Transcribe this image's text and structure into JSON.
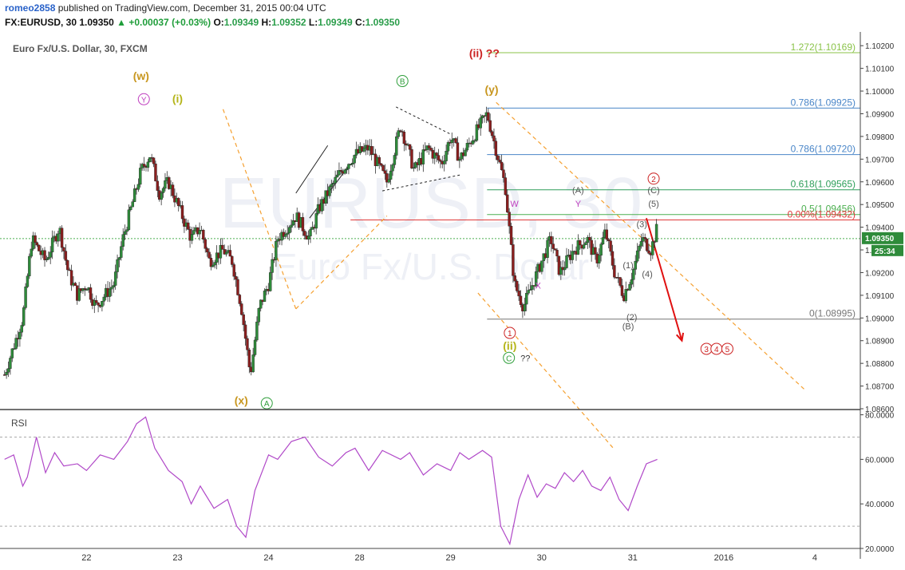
{
  "header": {
    "author": "romeo2858",
    "published_text": "published on TradingView.com, December 31, 2015 00:04 UTC",
    "symbol": "FX:EURUSD, 30",
    "last": "1.09350",
    "change": "+0.00037 (+0.03%)",
    "open_label": "O:",
    "open": "1.09349",
    "high_label": "H:",
    "high": "1.09352",
    "low_label": "L:",
    "low": "1.09349",
    "close_label": "C:",
    "close": "1.09350"
  },
  "chart_data": {
    "type": "candlestick",
    "title": "Euro Fx/U.S. Dollar, 30, FXCM",
    "watermark": [
      "EURUSD, 30",
      "Euro Fx/U.S. Dollar"
    ],
    "ylim": [
      1.086,
      1.1025
    ],
    "y_ticks": [
      "1.08600",
      "1.08700",
      "1.08800",
      "1.08900",
      "1.09000",
      "1.09100",
      "1.09200",
      "1.09300",
      "1.09400",
      "1.09500",
      "1.09600",
      "1.09700",
      "1.09800",
      "1.09900",
      "1.10000",
      "1.10100",
      "1.10200"
    ],
    "x_ticks": [
      "22",
      "23",
      "24",
      "28",
      "29",
      "30",
      "31",
      "2016",
      "4"
    ],
    "x_tick_days": [
      1,
      2,
      3,
      4,
      5,
      6,
      7,
      8,
      9
    ],
    "x_range_days": [
      0.12,
      9.5
    ],
    "last_price": {
      "value": 1.0935,
      "label": "1.09350",
      "timer": "25:34"
    },
    "price_path": [
      [
        0.1,
        1.0875
      ],
      [
        0.3,
        1.09
      ],
      [
        0.4,
        1.0935
      ],
      [
        0.55,
        1.0925
      ],
      [
        0.7,
        1.094
      ],
      [
        0.8,
        1.092
      ],
      [
        0.9,
        1.091
      ],
      [
        1.0,
        1.0915
      ],
      [
        1.1,
        1.0905
      ],
      [
        1.3,
        1.0915
      ],
      [
        1.4,
        1.0935
      ],
      [
        1.5,
        1.095
      ],
      [
        1.6,
        1.0965
      ],
      [
        1.7,
        1.0972
      ],
      [
        1.8,
        1.0955
      ],
      [
        1.9,
        1.096
      ],
      [
        2.05,
        1.0945
      ],
      [
        2.15,
        1.0935
      ],
      [
        2.25,
        1.094
      ],
      [
        2.35,
        1.0925
      ],
      [
        2.5,
        1.093
      ],
      [
        2.6,
        1.0925
      ],
      [
        2.7,
        1.0905
      ],
      [
        2.8,
        1.0875
      ],
      [
        2.9,
        1.0905
      ],
      [
        3.0,
        1.0915
      ],
      [
        3.1,
        1.0935
      ],
      [
        3.3,
        1.0945
      ],
      [
        3.45,
        1.0935
      ],
      [
        3.55,
        1.0948
      ],
      [
        3.65,
        1.0955
      ],
      [
        3.8,
        1.0965
      ],
      [
        3.95,
        1.0972
      ],
      [
        4.1,
        1.0975
      ],
      [
        4.3,
        1.096
      ],
      [
        4.45,
        1.0985
      ],
      [
        4.6,
        1.0965
      ],
      [
        4.75,
        1.0975
      ],
      [
        4.9,
        1.0968
      ],
      [
        5.0,
        1.098
      ],
      [
        5.1,
        1.097
      ],
      [
        5.25,
        1.098
      ],
      [
        5.4,
        1.099
      ],
      [
        5.6,
        1.0958
      ],
      [
        5.7,
        1.0915
      ],
      [
        5.8,
        1.0905
      ],
      [
        5.95,
        1.092
      ],
      [
        6.1,
        1.0935
      ],
      [
        6.2,
        1.092
      ],
      [
        6.35,
        1.093
      ],
      [
        6.5,
        1.0935
      ],
      [
        6.6,
        1.0925
      ],
      [
        6.7,
        1.0938
      ],
      [
        6.8,
        1.092
      ],
      [
        6.9,
        1.091
      ],
      [
        7.0,
        1.092
      ],
      [
        7.1,
        1.0935
      ],
      [
        7.2,
        1.093
      ],
      [
        7.27,
        1.094
      ]
    ],
    "fibonacci": {
      "color": "#e03a3a",
      "levels": [
        {
          "label": "1.272(1.10169)",
          "value": 1.10169,
          "color": "#8bc34a"
        },
        {
          "label": "0.786(1.09925)",
          "value": 1.09925,
          "color": "#4a86c8"
        },
        {
          "label": "0.786(1.09720)",
          "value": 1.0972,
          "color": "#4a86c8"
        },
        {
          "label": "0.618(1.09565)",
          "value": 1.09565,
          "color": "#2e9e5a"
        },
        {
          "label": "0.5(1.09456)",
          "value": 1.09456,
          "color": "#4caf50"
        },
        {
          "label": "0.00%(1.09432)",
          "value": 1.09432,
          "color": "#e03a3a"
        },
        {
          "label": "0(1.08995)",
          "value": 1.08995,
          "color": "#777777"
        }
      ]
    },
    "wave_labels": [
      {
        "text": "(w)",
        "x": 1.6,
        "y": 1.1005,
        "color": "#c8961e",
        "shape": "none"
      },
      {
        "text": "Y",
        "x": 1.63,
        "y": 1.0995,
        "color": "#c040c0",
        "shape": "circle"
      },
      {
        "text": "(i)",
        "x": 2.0,
        "y": 1.0995,
        "color": "#b5b51a",
        "shape": "none"
      },
      {
        "text": "B",
        "x": 4.47,
        "y": 1.1003,
        "color": "#2e9e3a",
        "shape": "circle"
      },
      {
        "text": "(ii) ??",
        "x": 5.37,
        "y": 1.1015,
        "color": "#cc2222",
        "shape": "none"
      },
      {
        "text": "(y)",
        "x": 5.45,
        "y": 1.0999,
        "color": "#c8961e",
        "shape": "none"
      },
      {
        "text": "2",
        "x": 7.23,
        "y": 1.096,
        "color": "#cc2222",
        "shape": "circle"
      },
      {
        "text": "(A)",
        "x": 6.4,
        "y": 1.0955,
        "color": "#555555",
        "shape": "none"
      },
      {
        "text": "Y",
        "x": 6.4,
        "y": 1.0949,
        "color": "#c040c0",
        "shape": "none"
      },
      {
        "text": "(C)",
        "x": 7.23,
        "y": 1.0955,
        "color": "#555555",
        "shape": "none"
      },
      {
        "text": "(5)",
        "x": 7.23,
        "y": 1.0949,
        "color": "#555555",
        "shape": "none"
      },
      {
        "text": "W",
        "x": 5.7,
        "y": 1.0949,
        "color": "#c040c0",
        "shape": "none"
      },
      {
        "text": "(3)",
        "x": 7.1,
        "y": 1.094,
        "color": "#555555",
        "shape": "none"
      },
      {
        "text": "X",
        "x": 5.96,
        "y": 1.0913,
        "color": "#c040c0",
        "shape": "none"
      },
      {
        "text": "(1)",
        "x": 6.95,
        "y": 1.0922,
        "color": "#555555",
        "shape": "none"
      },
      {
        "text": "(4)",
        "x": 7.16,
        "y": 1.0918,
        "color": "#555555",
        "shape": "none"
      },
      {
        "text": "(2)",
        "x": 6.99,
        "y": 1.0899,
        "color": "#555555",
        "shape": "none"
      },
      {
        "text": "(B)",
        "x": 6.95,
        "y": 1.0895,
        "color": "#555555",
        "shape": "none"
      },
      {
        "text": "1",
        "x": 5.65,
        "y": 1.0892,
        "color": "#cc2222",
        "shape": "circle"
      },
      {
        "text": "(ii)",
        "x": 5.65,
        "y": 1.0886,
        "color": "#b5b51a",
        "shape": "none"
      },
      {
        "text": "C",
        "x": 5.64,
        "y": 1.0881,
        "color": "#2e9e3a",
        "shape": "circle"
      },
      {
        "text": "??",
        "x": 5.82,
        "y": 1.0881,
        "color": "#333333",
        "shape": "none"
      },
      {
        "text": "(x)",
        "x": 2.7,
        "y": 1.0862,
        "color": "#c8961e",
        "shape": "none"
      },
      {
        "text": "A",
        "x": 2.98,
        "y": 1.0861,
        "color": "#2e9e3a",
        "shape": "circle"
      },
      {
        "text": "3",
        "x": 7.81,
        "y": 1.0885,
        "color": "#cc2222",
        "shape": "circle"
      },
      {
        "text": "4",
        "x": 7.92,
        "y": 1.0885,
        "color": "#cc2222",
        "shape": "circle"
      },
      {
        "text": "5",
        "x": 8.04,
        "y": 1.0885,
        "color": "#cc2222",
        "shape": "circle"
      }
    ],
    "projection_arrow": {
      "from": [
        7.15,
        1.0944
      ],
      "to": [
        7.54,
        1.089
      ],
      "color": "#e01010"
    },
    "rsi": {
      "label": "RSI",
      "ylim": [
        20,
        82
      ],
      "y_ticks": [
        "80.0000",
        "60.0000",
        "40.0000",
        "20.0000"
      ],
      "bands": [
        70,
        30
      ],
      "points": [
        [
          0.1,
          60
        ],
        [
          0.2,
          62
        ],
        [
          0.3,
          48
        ],
        [
          0.35,
          52
        ],
        [
          0.45,
          70
        ],
        [
          0.55,
          54
        ],
        [
          0.65,
          63
        ],
        [
          0.75,
          57
        ],
        [
          0.9,
          58
        ],
        [
          1.0,
          55
        ],
        [
          1.15,
          62
        ],
        [
          1.3,
          60
        ],
        [
          1.45,
          68
        ],
        [
          1.55,
          76
        ],
        [
          1.65,
          79
        ],
        [
          1.75,
          65
        ],
        [
          1.9,
          55
        ],
        [
          2.05,
          50
        ],
        [
          2.15,
          40
        ],
        [
          2.25,
          48
        ],
        [
          2.4,
          38
        ],
        [
          2.55,
          42
        ],
        [
          2.65,
          30
        ],
        [
          2.75,
          25
        ],
        [
          2.85,
          46
        ],
        [
          3.0,
          62
        ],
        [
          3.1,
          60
        ],
        [
          3.25,
          68
        ],
        [
          3.4,
          70
        ],
        [
          3.55,
          61
        ],
        [
          3.7,
          57
        ],
        [
          3.85,
          63
        ],
        [
          3.95,
          65
        ],
        [
          4.1,
          55
        ],
        [
          4.25,
          64
        ],
        [
          4.45,
          60
        ],
        [
          4.55,
          63
        ],
        [
          4.7,
          53
        ],
        [
          4.85,
          58
        ],
        [
          5.0,
          55
        ],
        [
          5.1,
          63
        ],
        [
          5.2,
          60
        ],
        [
          5.35,
          64
        ],
        [
          5.45,
          61
        ],
        [
          5.55,
          30
        ],
        [
          5.65,
          22
        ],
        [
          5.75,
          42
        ],
        [
          5.85,
          53
        ],
        [
          5.95,
          43
        ],
        [
          6.05,
          49
        ],
        [
          6.15,
          47
        ],
        [
          6.25,
          54
        ],
        [
          6.35,
          50
        ],
        [
          6.45,
          55
        ],
        [
          6.55,
          48
        ],
        [
          6.65,
          46
        ],
        [
          6.75,
          52
        ],
        [
          6.85,
          42
        ],
        [
          6.95,
          37
        ],
        [
          7.05,
          48
        ],
        [
          7.15,
          58
        ],
        [
          7.27,
          60
        ]
      ]
    }
  }
}
